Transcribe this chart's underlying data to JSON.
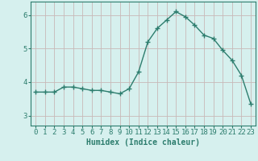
{
  "x": [
    0,
    1,
    2,
    3,
    4,
    5,
    6,
    7,
    8,
    9,
    10,
    11,
    12,
    13,
    14,
    15,
    16,
    17,
    18,
    19,
    20,
    21,
    22,
    23
  ],
  "y": [
    3.7,
    3.7,
    3.7,
    3.85,
    3.85,
    3.8,
    3.75,
    3.75,
    3.7,
    3.65,
    3.8,
    4.3,
    5.2,
    5.6,
    5.85,
    6.1,
    5.95,
    5.7,
    5.4,
    5.3,
    4.95,
    4.65,
    4.2,
    3.35
  ],
  "line_color": "#2d7d6e",
  "marker": "+",
  "marker_size": 4,
  "linewidth": 1.0,
  "xlabel": "Humidex (Indice chaleur)",
  "xlabel_fontsize": 7,
  "xticks": [
    0,
    1,
    2,
    3,
    4,
    5,
    6,
    7,
    8,
    9,
    10,
    11,
    12,
    13,
    14,
    15,
    16,
    17,
    18,
    19,
    20,
    21,
    22,
    23
  ],
  "yticks": [
    3,
    4,
    5,
    6
  ],
  "ylim": [
    2.7,
    6.4
  ],
  "xlim": [
    -0.5,
    23.5
  ],
  "bg_color": "#d6f0ee",
  "grid_color": "#c8b8b8",
  "tick_fontsize": 6.5,
  "tick_color": "#2d7d6e",
  "axis_color": "#2d7d6e",
  "label_color": "#2d7d6e"
}
